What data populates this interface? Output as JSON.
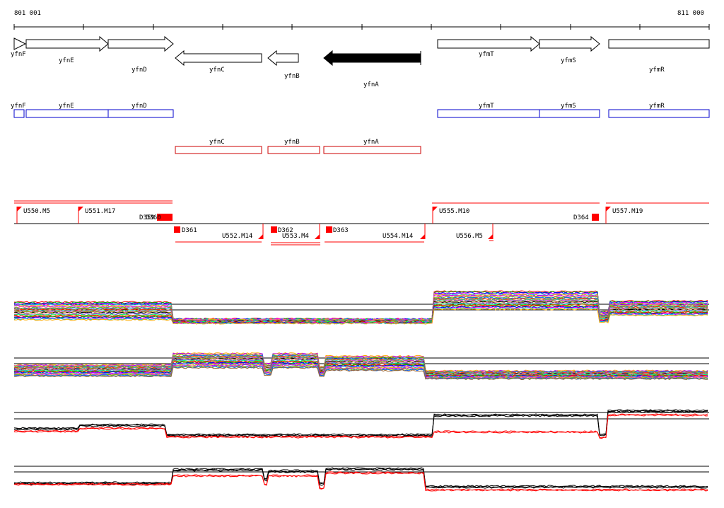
{
  "coords": {
    "start": "801 001",
    "end": "811 000"
  },
  "genes": [
    {
      "name": "yfnF",
      "strand": "+",
      "type": "outline"
    },
    {
      "name": "yfnE",
      "strand": "+",
      "type": "outline"
    },
    {
      "name": "yfnD",
      "strand": "+",
      "type": "outline"
    },
    {
      "name": "yfnC",
      "strand": "-",
      "type": "outline"
    },
    {
      "name": "yfnB",
      "strand": "-",
      "type": "outline"
    },
    {
      "name": "yfnA",
      "strand": "-",
      "type": "filled"
    },
    {
      "name": "yfmT",
      "strand": "+",
      "type": "outline"
    },
    {
      "name": "yfmS",
      "strand": "+",
      "type": "outline"
    },
    {
      "name": "yfmR",
      "strand": "+",
      "type": "outline"
    }
  ],
  "blue_track": [
    "yfnF",
    "yfnE",
    "yfnD",
    "yfmT",
    "yfmS",
    "yfmR"
  ],
  "red_track": [
    "yfnC",
    "yfnB",
    "yfnA"
  ],
  "upper_segments": [
    "U550.M5",
    "U551.M17",
    "U555.M10",
    "U557.M19"
  ],
  "lower_segments": [
    "U552.M14",
    "U553.M4",
    "U554.M14",
    "U556.M5"
  ],
  "downshifts": [
    "D359",
    "D360",
    "D361",
    "D362",
    "D363",
    "D364"
  ],
  "colors": {
    "plus_track": "#0000cc",
    "minus_track": "#cc0000",
    "feature": "#ff0000",
    "filled_gene": "#000000"
  }
}
